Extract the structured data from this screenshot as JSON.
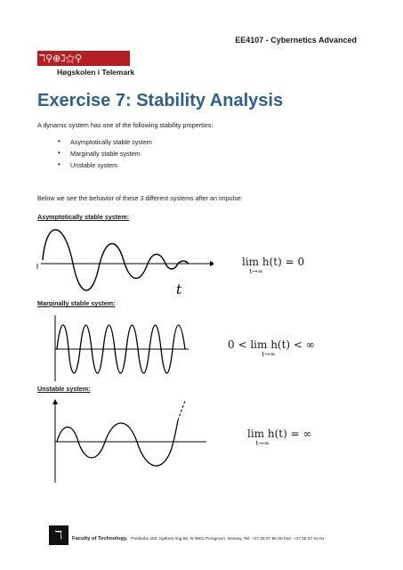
{
  "header": {
    "course": "EE4107 - Cybernetics Advanced"
  },
  "logo": {
    "glyphs": "ℸ⚲⊕ℷ⚝⚲",
    "name": "Høgskolen i Telemark"
  },
  "title": "Exercise 7: Stability Analysis",
  "intro": "A dynamic system has one of the following stability properties:",
  "properties": [
    "Asymptotically stable system",
    "Marginally stable system",
    "Unstable system"
  ],
  "behavior_text": "Below we see the behavior of these 3 different systems after an impulse:",
  "sections": [
    {
      "heading": "Asymptotically stable system:",
      "axis_label": "t",
      "formula": "lim h(t) = 0",
      "formula_sub": "t→∞"
    },
    {
      "heading": "Marginally stable system:",
      "formula": "0 < lim h(t) < ∞",
      "formula_sub": "t→∞"
    },
    {
      "heading": "Unstable system:",
      "formula": "lim h(t) = ∞",
      "formula_sub": "t→∞"
    }
  ],
  "footer": {
    "icon": "ℸ",
    "faculty": "Faculty of Technology,",
    "address": "Postboks 203, Kjølnes ring 56, N-3901 Porsgrunn, Norway.  Tel: +47 35 57 50 00  Fax: +47 35 57 54 01"
  }
}
